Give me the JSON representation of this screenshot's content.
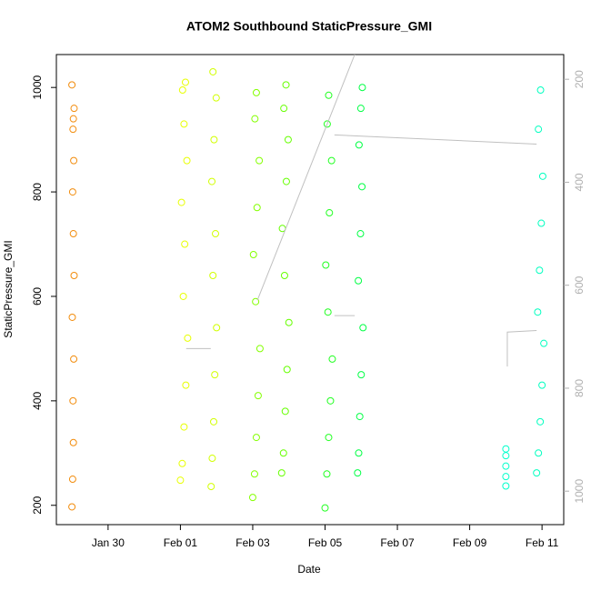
{
  "chart_data": {
    "type": "scatter",
    "title": "ATOM2 Southbound StaticPressure_GMI",
    "xlabel": "Date",
    "ylabel": "StaticPressure_GMI",
    "xlim": [
      28.57,
      42.6
    ],
    "xticks": [
      {
        "value": 30,
        "label": "Jan 30"
      },
      {
        "value": 32,
        "label": "Feb 01"
      },
      {
        "value": 34,
        "label": "Feb 03"
      },
      {
        "value": 36,
        "label": "Feb 05"
      },
      {
        "value": 38,
        "label": "Feb 07"
      },
      {
        "value": 40,
        "label": "Feb 09"
      },
      {
        "value": 42,
        "label": "Feb 11"
      }
    ],
    "ylim": [
      163,
      1063
    ],
    "yticks": [
      200,
      400,
      600,
      800,
      1000
    ],
    "y2lim": [
      1065,
      152
    ],
    "y2ticks": [
      200,
      400,
      600,
      800,
      1000
    ],
    "y2color": "#b0b0b0",
    "series": [
      {
        "color": "#f28c0c",
        "x": [
          29.0,
          29.02,
          29.04,
          29.03,
          29.05,
          29.01,
          29.06,
          29.04,
          29.02,
          29.05,
          29.03,
          29.06,
          29.0,
          29.04
        ],
        "values": [
          197,
          250,
          320,
          400,
          480,
          560,
          640,
          720,
          800,
          860,
          920,
          960,
          1005,
          940
        ]
      },
      {
        "color": "#e8ff00",
        "x": [
          32.0,
          32.05,
          32.1,
          32.15,
          32.2,
          32.08,
          32.12,
          32.03,
          32.18,
          32.1,
          32.06,
          32.14
        ],
        "values": [
          248,
          280,
          350,
          430,
          520,
          600,
          700,
          780,
          860,
          930,
          995,
          1010
        ]
      },
      {
        "color": "#d2ff00",
        "x": [
          32.85,
          32.88,
          32.92,
          32.95,
          33.0,
          32.9,
          32.97,
          32.87,
          32.93,
          32.99,
          32.9
        ],
        "values": [
          236,
          290,
          360,
          450,
          540,
          640,
          720,
          820,
          900,
          980,
          1030
        ]
      },
      {
        "color": "#84ff00",
        "x": [
          34.0,
          34.05,
          34.1,
          34.15,
          34.2,
          34.08,
          34.02,
          34.12,
          34.18,
          34.06,
          34.1
        ],
        "values": [
          215,
          260,
          330,
          410,
          500,
          590,
          680,
          770,
          860,
          940,
          990
        ]
      },
      {
        "color": "#66ff00",
        "x": [
          34.8,
          34.85,
          34.9,
          34.95,
          35.0,
          34.88,
          34.82,
          34.93,
          34.98,
          34.86,
          34.92
        ],
        "values": [
          262,
          300,
          380,
          460,
          550,
          640,
          730,
          820,
          900,
          960,
          1005
        ]
      },
      {
        "color": "#22ff22",
        "x": [
          36.0,
          36.05,
          36.1,
          36.15,
          36.2,
          36.08,
          36.02,
          36.12,
          36.18,
          36.06,
          36.1
        ],
        "values": [
          195,
          260,
          330,
          400,
          480,
          570,
          660,
          760,
          860,
          930,
          985
        ]
      },
      {
        "color": "#00ff44",
        "x": [
          36.9,
          36.93,
          36.96,
          37.0,
          37.05,
          36.92,
          36.98,
          37.02,
          36.94,
          36.99,
          37.03
        ],
        "values": [
          262,
          300,
          370,
          450,
          540,
          630,
          720,
          810,
          890,
          960,
          1000
        ]
      },
      {
        "color": "#00ffcc",
        "x": [
          41.0,
          41.0,
          41.0,
          41.0,
          41.0
        ],
        "values": [
          237,
          255,
          275,
          295,
          308
        ]
      },
      {
        "color": "#00ffc0",
        "x": [
          41.85,
          41.9,
          41.95,
          42.0,
          42.05,
          41.88,
          41.93,
          41.98,
          42.02,
          41.9,
          41.96
        ],
        "values": [
          262,
          300,
          360,
          430,
          510,
          570,
          650,
          740,
          830,
          920,
          995
        ]
      },
      {
        "type": "line",
        "axis": "y2",
        "color": "#c0c0c0",
        "x": [
          32.16,
          32.84,
          null,
          34.13,
          36.82,
          null,
          36.26,
          41.85,
          null,
          36.26,
          36.82,
          null,
          41.04,
          41.04,
          41.85
        ],
        "values": [
          723,
          723,
          null,
          629,
          152,
          null,
          308,
          326,
          null,
          659,
          659,
          null,
          758,
          691,
          688
        ]
      }
    ]
  }
}
